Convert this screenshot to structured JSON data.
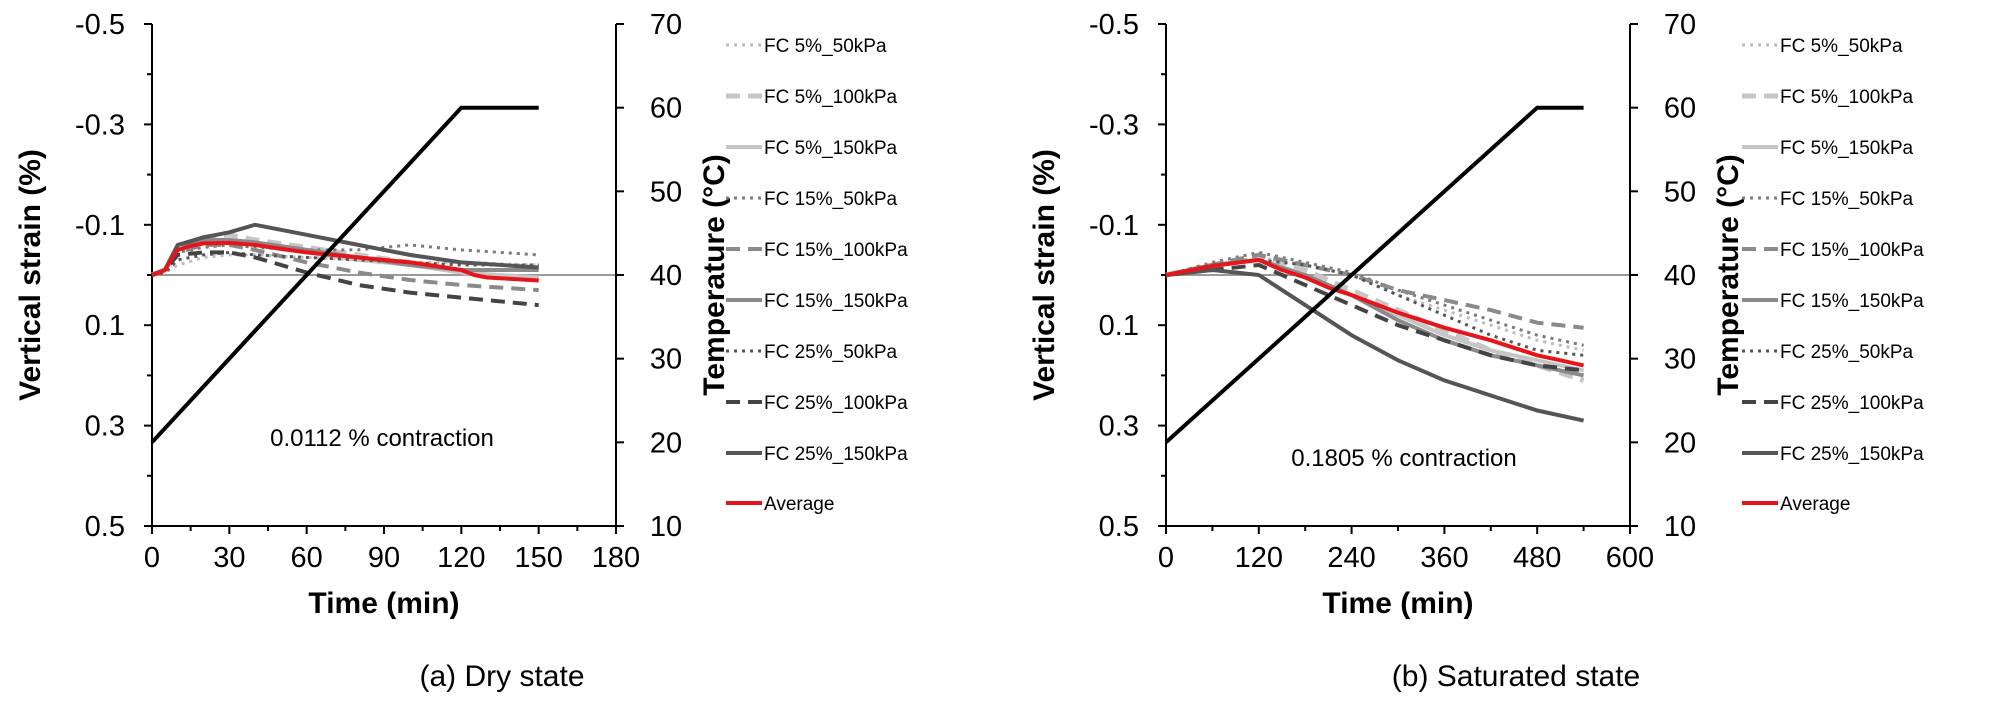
{
  "chart_data": [
    {
      "type": "line",
      "caption": "(a)  Dry  state",
      "xlabel": "Time (min)",
      "ylabel": "Vertical strain (%)",
      "y2label": "Temperature (°C)",
      "annotation": "0.0112 % contraction",
      "xlim": [
        0,
        180
      ],
      "xticks": [
        "0",
        "30",
        "60",
        "90",
        "120",
        "150",
        "180"
      ],
      "ylim": [
        -0.5,
        0.5
      ],
      "yreversed": true,
      "yticks": [
        "-0.5",
        "-0.3",
        "-0.1",
        "0.1",
        "0.3",
        "0.5"
      ],
      "y2lim": [
        10,
        70
      ],
      "y2ticks": [
        "70",
        "60",
        "50",
        "40",
        "30",
        "20",
        "10"
      ],
      "temperature": {
        "x": [
          0,
          120,
          150
        ],
        "y": [
          20,
          60,
          60
        ]
      },
      "series": [
        {
          "name": "FC 5%_50kPa",
          "color": "#bdbdbd",
          "dash": "3,5",
          "width": 3,
          "x": [
            0,
            5,
            10,
            20,
            30,
            40,
            60,
            80,
            100,
            120,
            150
          ],
          "y": [
            0.0,
            -0.005,
            -0.02,
            -0.035,
            -0.04,
            -0.04,
            -0.035,
            -0.03,
            -0.025,
            -0.025,
            -0.02
          ]
        },
        {
          "name": "FC 5%_100kPa",
          "color": "#c6c6c6",
          "dash": "14,8",
          "width": 5,
          "x": [
            0,
            5,
            10,
            20,
            30,
            40,
            60,
            80,
            100,
            120,
            150
          ],
          "y": [
            0.0,
            -0.01,
            -0.055,
            -0.075,
            -0.08,
            -0.07,
            -0.055,
            -0.04,
            -0.025,
            -0.005,
            0.01
          ]
        },
        {
          "name": "FC 5%_150kPa",
          "color": "#c6c6c6",
          "dash": "",
          "width": 4,
          "x": [
            0,
            5,
            10,
            20,
            30,
            40,
            60,
            80,
            100,
            120,
            150
          ],
          "y": [
            0.0,
            -0.01,
            -0.05,
            -0.065,
            -0.07,
            -0.06,
            -0.045,
            -0.03,
            -0.02,
            -0.005,
            0.005
          ]
        },
        {
          "name": "FC 15%_50kPa",
          "color": "#7a7a7a",
          "dash": "3,5",
          "width": 3,
          "x": [
            0,
            5,
            10,
            20,
            30,
            40,
            60,
            80,
            100,
            120,
            150
          ],
          "y": [
            0.0,
            -0.01,
            -0.045,
            -0.055,
            -0.06,
            -0.055,
            -0.05,
            -0.05,
            -0.06,
            -0.05,
            -0.04
          ]
        },
        {
          "name": "FC 15%_100kPa",
          "color": "#8a8a8a",
          "dash": "14,8",
          "width": 4,
          "x": [
            0,
            5,
            10,
            20,
            30,
            40,
            60,
            80,
            100,
            120,
            150
          ],
          "y": [
            0.0,
            -0.01,
            -0.045,
            -0.06,
            -0.06,
            -0.05,
            -0.025,
            -0.005,
            0.01,
            0.02,
            0.03
          ]
        },
        {
          "name": "FC 15%_150kPa",
          "color": "#8a8a8a",
          "dash": "",
          "width": 4,
          "x": [
            0,
            5,
            10,
            20,
            30,
            40,
            60,
            80,
            100,
            120,
            150
          ],
          "y": [
            0.0,
            -0.01,
            -0.06,
            -0.07,
            -0.07,
            -0.065,
            -0.05,
            -0.035,
            -0.02,
            -0.01,
            -0.01
          ]
        },
        {
          "name": "FC 25%_50kPa",
          "color": "#545454",
          "dash": "3,5",
          "width": 3,
          "x": [
            0,
            5,
            10,
            20,
            30,
            40,
            60,
            80,
            100,
            120,
            150
          ],
          "y": [
            0.0,
            -0.005,
            -0.03,
            -0.04,
            -0.045,
            -0.04,
            -0.035,
            -0.03,
            -0.025,
            -0.02,
            -0.02
          ]
        },
        {
          "name": "FC 25%_100kPa",
          "color": "#444444",
          "dash": "14,8",
          "width": 4,
          "x": [
            0,
            5,
            10,
            20,
            30,
            40,
            60,
            80,
            100,
            120,
            150
          ],
          "y": [
            0.0,
            -0.01,
            -0.04,
            -0.045,
            -0.045,
            -0.035,
            -0.005,
            0.02,
            0.035,
            0.045,
            0.06
          ]
        },
        {
          "name": "FC 25%_150kPa",
          "color": "#555555",
          "dash": "",
          "width": 4,
          "x": [
            0,
            5,
            10,
            20,
            30,
            40,
            60,
            80,
            100,
            120,
            150
          ],
          "y": [
            0.0,
            -0.01,
            -0.06,
            -0.075,
            -0.085,
            -0.1,
            -0.08,
            -0.06,
            -0.04,
            -0.025,
            -0.015
          ]
        },
        {
          "name": "Average",
          "color": "#e8141b",
          "dash": "",
          "width": 4,
          "x": [
            0,
            3,
            5,
            8,
            10,
            15,
            20,
            30,
            40,
            50,
            60,
            70,
            80,
            90,
            100,
            110,
            120,
            125,
            130,
            140,
            150
          ],
          "y": [
            0.0,
            -0.005,
            -0.01,
            -0.035,
            -0.05,
            -0.058,
            -0.063,
            -0.064,
            -0.06,
            -0.052,
            -0.045,
            -0.04,
            -0.035,
            -0.03,
            -0.025,
            -0.018,
            -0.01,
            0.0,
            0.005,
            0.008,
            0.011
          ]
        }
      ]
    },
    {
      "type": "line",
      "caption": "(b)  Saturated  state",
      "xlabel": "Time (min)",
      "ylabel": "Vertical strain (%)",
      "y2label": "Temperature (°C)",
      "annotation": "0.1805 % contraction",
      "xlim": [
        0,
        600
      ],
      "xticks": [
        "0",
        "120",
        "240",
        "360",
        "480",
        "600"
      ],
      "ylim": [
        -0.5,
        0.5
      ],
      "yreversed": true,
      "yticks": [
        "-0.5",
        "-0.3",
        "-0.1",
        "0.1",
        "0.3",
        "0.5"
      ],
      "y2lim": [
        10,
        70
      ],
      "y2ticks": [
        "70",
        "60",
        "50",
        "40",
        "30",
        "20",
        "10"
      ],
      "temperature": {
        "x": [
          0,
          480,
          540
        ],
        "y": [
          20,
          60,
          60
        ]
      },
      "series": [
        {
          "name": "FC 5%_50kPa",
          "color": "#bdbdbd",
          "dash": "3,5",
          "width": 3,
          "x": [
            0,
            60,
            120,
            180,
            240,
            300,
            360,
            420,
            480,
            540
          ],
          "y": [
            0.0,
            -0.02,
            -0.035,
            -0.02,
            0.0,
            0.04,
            0.07,
            0.1,
            0.13,
            0.15
          ]
        },
        {
          "name": "FC 5%_100kPa",
          "color": "#c6c6c6",
          "dash": "14,8",
          "width": 5,
          "x": [
            0,
            60,
            120,
            180,
            240,
            300,
            360,
            420,
            480,
            540
          ],
          "y": [
            0.0,
            -0.02,
            -0.04,
            -0.01,
            0.03,
            0.07,
            0.11,
            0.15,
            0.18,
            0.21
          ]
        },
        {
          "name": "FC 5%_150kPa",
          "color": "#c6c6c6",
          "dash": "",
          "width": 4,
          "x": [
            0,
            60,
            120,
            180,
            240,
            300,
            360,
            420,
            480,
            540
          ],
          "y": [
            0.0,
            -0.02,
            -0.03,
            0.0,
            0.04,
            0.08,
            0.12,
            0.15,
            0.17,
            0.19
          ]
        },
        {
          "name": "FC 15%_50kPa",
          "color": "#7a7a7a",
          "dash": "3,5",
          "width": 3,
          "x": [
            0,
            60,
            120,
            180,
            240,
            300,
            360,
            420,
            480,
            540
          ],
          "y": [
            0.0,
            -0.025,
            -0.045,
            -0.025,
            -0.005,
            0.03,
            0.06,
            0.09,
            0.12,
            0.14
          ]
        },
        {
          "name": "FC 15%_100kPa",
          "color": "#8a8a8a",
          "dash": "14,8",
          "width": 4,
          "x": [
            0,
            60,
            120,
            180,
            240,
            300,
            360,
            420,
            480,
            540
          ],
          "y": [
            0.0,
            -0.02,
            -0.04,
            -0.02,
            0.0,
            0.03,
            0.05,
            0.07,
            0.095,
            0.105
          ]
        },
        {
          "name": "FC 15%_150kPa",
          "color": "#8a8a8a",
          "dash": "",
          "width": 4,
          "x": [
            0,
            60,
            120,
            180,
            240,
            300,
            360,
            420,
            480,
            540
          ],
          "y": [
            0.0,
            -0.02,
            -0.03,
            0.0,
            0.04,
            0.09,
            0.13,
            0.16,
            0.18,
            0.2
          ]
        },
        {
          "name": "FC 25%_50kPa",
          "color": "#545454",
          "dash": "3,5",
          "width": 3,
          "x": [
            0,
            60,
            120,
            180,
            240,
            300,
            360,
            420,
            480,
            540
          ],
          "y": [
            0.0,
            -0.02,
            -0.03,
            -0.02,
            0.0,
            0.04,
            0.08,
            0.12,
            0.15,
            0.16
          ]
        },
        {
          "name": "FC 25%_100kPa",
          "color": "#444444",
          "dash": "14,8",
          "width": 4,
          "x": [
            0,
            60,
            120,
            180,
            240,
            300,
            360,
            420,
            480,
            540
          ],
          "y": [
            0.0,
            -0.01,
            -0.02,
            0.02,
            0.06,
            0.1,
            0.13,
            0.16,
            0.18,
            0.19
          ]
        },
        {
          "name": "FC 25%_150kPa",
          "color": "#555555",
          "dash": "",
          "width": 4,
          "x": [
            0,
            60,
            120,
            180,
            240,
            300,
            360,
            420,
            480,
            540
          ],
          "y": [
            0.0,
            -0.01,
            0.0,
            0.06,
            0.12,
            0.17,
            0.21,
            0.24,
            0.27,
            0.29
          ]
        },
        {
          "name": "Average",
          "color": "#e8141b",
          "dash": "",
          "width": 4,
          "x": [
            0,
            60,
            120,
            150,
            180,
            210,
            240,
            300,
            360,
            420,
            480,
            510,
            540
          ],
          "y": [
            0.0,
            -0.018,
            -0.03,
            -0.01,
            0.005,
            0.025,
            0.04,
            0.075,
            0.105,
            0.13,
            0.16,
            0.17,
            0.18
          ]
        }
      ]
    }
  ]
}
